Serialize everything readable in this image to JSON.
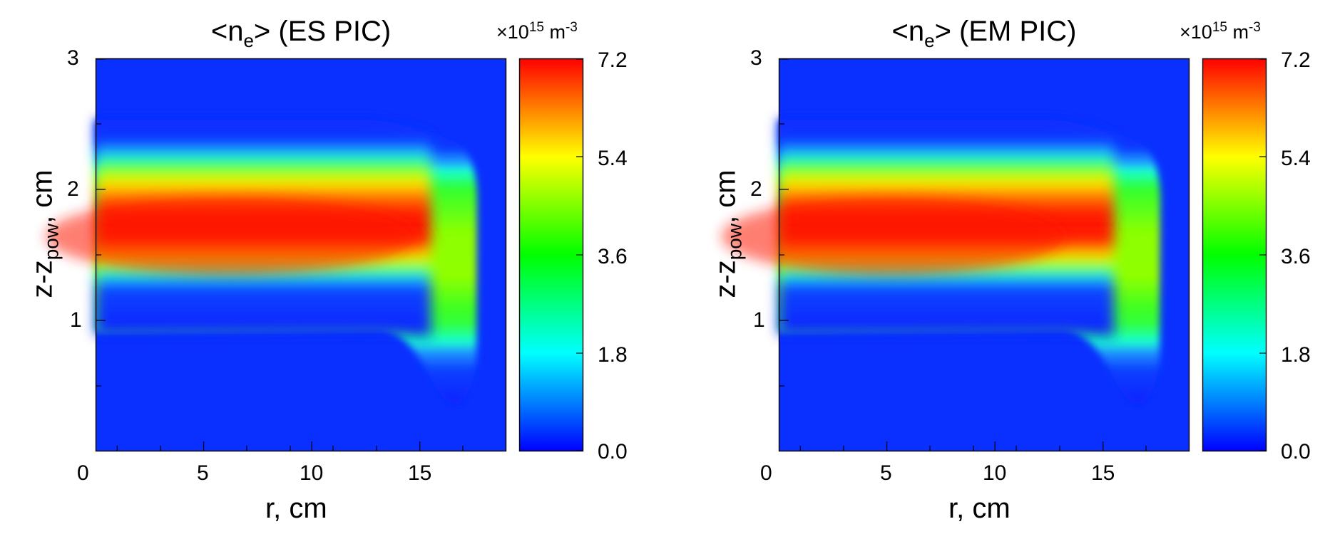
{
  "chart_data": [
    {
      "type": "heatmap",
      "title_parts": [
        "<n",
        "e",
        "> (ES PIC)"
      ],
      "xlabel": "r, cm",
      "ylabel_parts": [
        "z-z",
        "pow",
        ", cm"
      ],
      "x_ticks": [
        "0",
        "5",
        "10",
        "15"
      ],
      "y_ticks": [
        "1",
        "2",
        "3"
      ],
      "xlim": [
        0,
        19
      ],
      "ylim": [
        0,
        3
      ],
      "colorbar": {
        "units_parts": [
          "×10",
          "15",
          " m",
          "-3"
        ],
        "ticks": [
          "0.0",
          "1.8",
          "3.6",
          "5.4",
          "7.2"
        ],
        "range": [
          0.0,
          7.2
        ],
        "colormap": [
          "#0000ff",
          "#00ffff",
          "#00ff00",
          "#ffff00",
          "#ff0000"
        ]
      }
    },
    {
      "type": "heatmap",
      "title_parts": [
        "<n",
        "e",
        "> (EM PIC)"
      ],
      "xlabel": "r, cm",
      "ylabel_parts": [
        "z-z",
        "pow",
        ", cm"
      ],
      "x_ticks": [
        "0",
        "5",
        "10",
        "15"
      ],
      "y_ticks": [
        "1",
        "2",
        "3"
      ],
      "xlim": [
        0,
        19
      ],
      "ylim": [
        0,
        3
      ],
      "colorbar": {
        "units_parts": [
          "×10",
          "15",
          " m",
          "-3"
        ],
        "ticks": [
          "0.0",
          "1.8",
          "3.6",
          "5.4",
          "7.2"
        ],
        "range": [
          0.0,
          7.2
        ],
        "colormap": [
          "#0000ff",
          "#00ffff",
          "#00ff00",
          "#ffff00",
          "#ff0000"
        ]
      }
    }
  ]
}
